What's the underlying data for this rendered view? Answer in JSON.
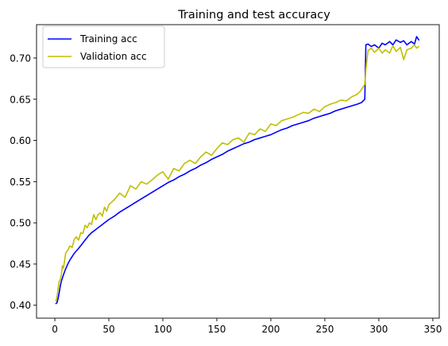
{
  "chart_data": {
    "type": "line",
    "title": "Training and test accuracy",
    "xlabel": "",
    "ylabel": "",
    "xlim": [
      -16.95,
      355.95
    ],
    "ylim": [
      0.3843,
      0.7405
    ],
    "xticks": [
      0,
      50,
      100,
      150,
      200,
      250,
      300,
      350
    ],
    "yticks": [
      0.4,
      0.45,
      0.5,
      0.55,
      0.6,
      0.65,
      0.7
    ],
    "grid": false,
    "legend": "top-left",
    "series": [
      {
        "name": "Training acc",
        "color": "#0000ff",
        "x": [
          1,
          2,
          3,
          4,
          5,
          6,
          8,
          10,
          12,
          14,
          16,
          18,
          20,
          22,
          25,
          28,
          31,
          34,
          37,
          40,
          43,
          46,
          50,
          55,
          60,
          65,
          70,
          75,
          80,
          85,
          90,
          95,
          100,
          105,
          110,
          115,
          120,
          125,
          130,
          135,
          140,
          145,
          150,
          155,
          160,
          165,
          170,
          175,
          180,
          185,
          190,
          195,
          200,
          205,
          210,
          215,
          220,
          225,
          230,
          235,
          240,
          245,
          250,
          255,
          260,
          265,
          270,
          275,
          280,
          284,
          287,
          288,
          290,
          293,
          296,
          300,
          303,
          306,
          310,
          313,
          316,
          320,
          323,
          326,
          330,
          333,
          335,
          337
        ],
        "y": [
          0.402,
          0.403,
          0.408,
          0.415,
          0.423,
          0.429,
          0.437,
          0.444,
          0.45,
          0.455,
          0.459,
          0.463,
          0.466,
          0.469,
          0.474,
          0.479,
          0.484,
          0.488,
          0.491,
          0.494,
          0.497,
          0.5,
          0.504,
          0.508,
          0.513,
          0.517,
          0.521,
          0.525,
          0.529,
          0.533,
          0.537,
          0.541,
          0.545,
          0.549,
          0.552,
          0.556,
          0.559,
          0.563,
          0.566,
          0.57,
          0.573,
          0.577,
          0.58,
          0.583,
          0.587,
          0.59,
          0.593,
          0.596,
          0.598,
          0.601,
          0.603,
          0.605,
          0.607,
          0.61,
          0.613,
          0.615,
          0.618,
          0.62,
          0.622,
          0.624,
          0.627,
          0.629,
          0.631,
          0.633,
          0.636,
          0.638,
          0.64,
          0.642,
          0.644,
          0.646,
          0.65,
          0.716,
          0.717,
          0.714,
          0.716,
          0.712,
          0.718,
          0.716,
          0.72,
          0.716,
          0.722,
          0.719,
          0.721,
          0.716,
          0.72,
          0.717,
          0.726,
          0.722
        ]
      },
      {
        "name": "Validation acc",
        "color": "#bfbf00",
        "x": [
          1,
          2,
          3,
          4,
          5,
          6,
          7,
          8,
          10,
          12,
          14,
          16,
          18,
          20,
          22,
          24,
          26,
          28,
          30,
          32,
          34,
          36,
          38,
          40,
          42,
          44,
          46,
          48,
          50,
          55,
          60,
          65,
          70,
          75,
          80,
          85,
          90,
          95,
          100,
          105,
          110,
          115,
          120,
          125,
          130,
          135,
          140,
          145,
          150,
          155,
          160,
          165,
          170,
          175,
          180,
          185,
          190,
          195,
          200,
          205,
          210,
          215,
          220,
          225,
          230,
          235,
          240,
          245,
          250,
          255,
          260,
          265,
          270,
          275,
          280,
          283,
          285,
          287,
          288,
          290,
          293,
          296,
          300,
          303,
          306,
          310,
          313,
          316,
          320,
          323,
          326,
          330,
          333,
          335,
          337
        ],
        "y": [
          0.405,
          0.41,
          0.42,
          0.429,
          0.431,
          0.437,
          0.448,
          0.445,
          0.463,
          0.467,
          0.472,
          0.47,
          0.48,
          0.483,
          0.479,
          0.488,
          0.487,
          0.497,
          0.494,
          0.5,
          0.498,
          0.51,
          0.504,
          0.51,
          0.512,
          0.508,
          0.519,
          0.514,
          0.522,
          0.528,
          0.536,
          0.531,
          0.545,
          0.541,
          0.55,
          0.547,
          0.552,
          0.558,
          0.562,
          0.553,
          0.566,
          0.563,
          0.572,
          0.576,
          0.572,
          0.58,
          0.586,
          0.582,
          0.59,
          0.597,
          0.595,
          0.601,
          0.603,
          0.598,
          0.609,
          0.607,
          0.614,
          0.611,
          0.62,
          0.618,
          0.624,
          0.626,
          0.628,
          0.631,
          0.634,
          0.633,
          0.638,
          0.635,
          0.641,
          0.644,
          0.646,
          0.649,
          0.648,
          0.653,
          0.656,
          0.66,
          0.664,
          0.668,
          0.686,
          0.709,
          0.712,
          0.707,
          0.712,
          0.706,
          0.71,
          0.706,
          0.715,
          0.708,
          0.713,
          0.698,
          0.71,
          0.712,
          0.716,
          0.712,
          0.714
        ]
      }
    ]
  }
}
